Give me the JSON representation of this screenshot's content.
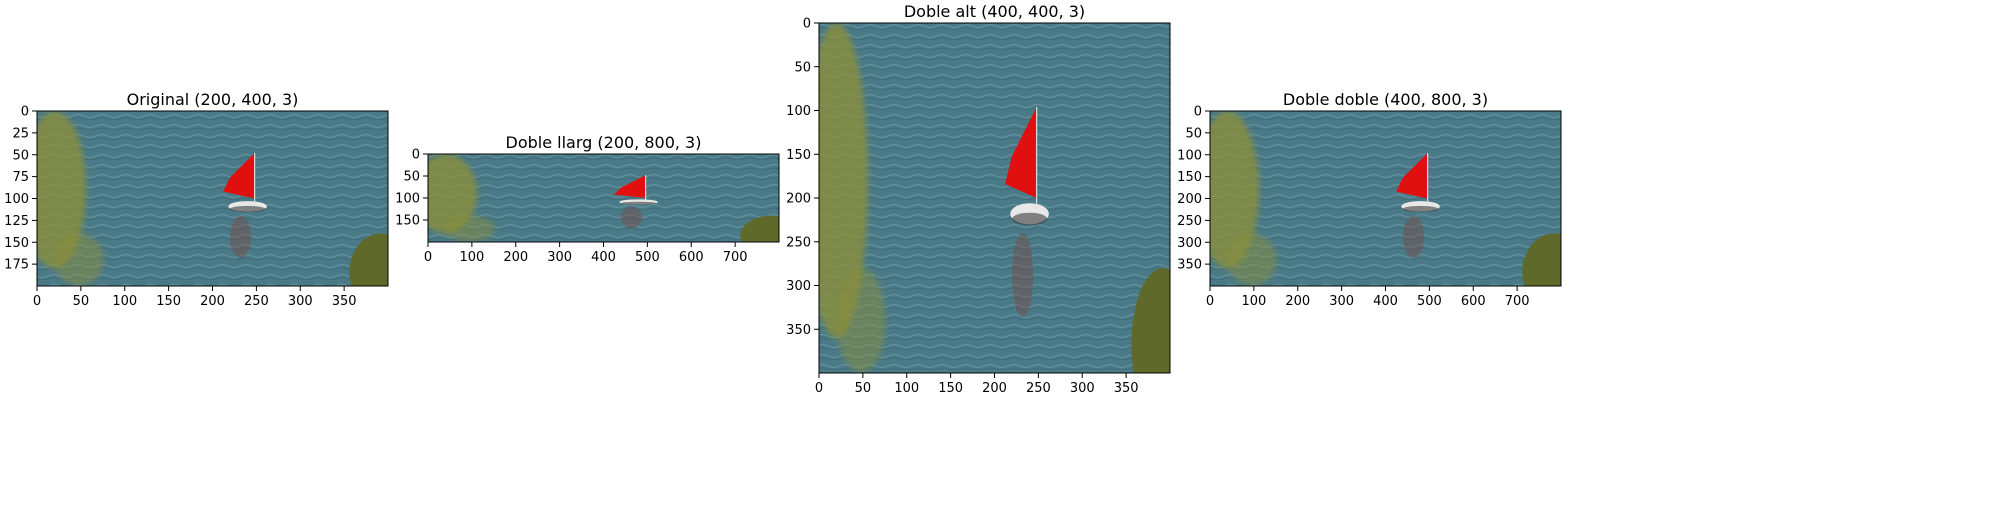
{
  "chart_data": [
    {
      "type": "image",
      "title": "Original (200, 400, 3)",
      "xlim": [
        0,
        400
      ],
      "ylim": [
        200,
        0
      ],
      "xticks": [
        0,
        50,
        100,
        150,
        200,
        250,
        300,
        350
      ],
      "yticks": [
        0,
        25,
        50,
        75,
        100,
        125,
        150,
        175
      ]
    },
    {
      "type": "image",
      "title": "Doble llarg (200, 800, 3)",
      "xlim": [
        0,
        800
      ],
      "ylim": [
        200,
        0
      ],
      "xticks": [
        0,
        100,
        200,
        300,
        400,
        500,
        600,
        700
      ],
      "yticks": [
        0,
        50,
        100,
        150
      ]
    },
    {
      "type": "image",
      "title": "Doble alt (400, 400, 3)",
      "xlim": [
        0,
        400
      ],
      "ylim": [
        400,
        0
      ],
      "xticks": [
        0,
        50,
        100,
        150,
        200,
        250,
        300,
        350
      ],
      "yticks": [
        0,
        50,
        100,
        150,
        200,
        250,
        300,
        350
      ]
    },
    {
      "type": "image",
      "title": "Doble doble (400, 800, 3)",
      "xlim": [
        0,
        800
      ],
      "ylim": [
        400,
        0
      ],
      "xticks": [
        0,
        100,
        200,
        300,
        400,
        500,
        600,
        700
      ],
      "yticks": [
        0,
        50,
        100,
        150,
        200,
        250,
        300,
        350
      ]
    }
  ],
  "colors": {
    "water": "#4a7a88",
    "water_dark": "#3e6b79",
    "sail": "#e01010",
    "foliage": "#8a8f3a",
    "foliage_dark": "#5f6a2a",
    "axis": "#000000"
  }
}
